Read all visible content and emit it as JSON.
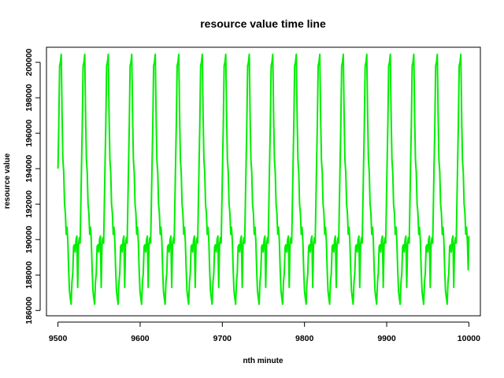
{
  "chart_data": {
    "type": "line",
    "title": "resource value time line",
    "xlabel": "nth minute",
    "ylabel": "resource value",
    "xlim": [
      9486,
      10014
    ],
    "ylim": [
      185700,
      200850
    ],
    "x_ticks": [
      9500,
      9600,
      9700,
      9800,
      9900,
      10000
    ],
    "y_ticks": [
      186000,
      188000,
      190000,
      192000,
      194000,
      196000,
      198000,
      200000
    ],
    "x_tick_labels": [
      "9500",
      "9600",
      "9700",
      "9800",
      "9900",
      "10000"
    ],
    "y_tick_labels": [
      "186000",
      "188000",
      "190000",
      "192000",
      "194000",
      "196000",
      "198000",
      "200000"
    ],
    "grid": false,
    "legend": "none",
    "line_color": "#00EE00",
    "period": 28.6,
    "cycle_template": [
      [
        0,
        194000
      ],
      [
        1,
        196500
      ],
      [
        2,
        199800
      ],
      [
        3,
        200000
      ],
      [
        4,
        200450
      ],
      [
        5,
        197000
      ],
      [
        6,
        194500
      ],
      [
        7,
        193800
      ],
      [
        8,
        192000
      ],
      [
        9,
        191500
      ],
      [
        10,
        190300
      ],
      [
        11,
        190700
      ],
      [
        12,
        189900
      ],
      [
        13,
        188300
      ],
      [
        14,
        187100
      ],
      [
        15,
        186700
      ],
      [
        16,
        186350
      ],
      [
        17,
        187600
      ],
      [
        18,
        188100
      ],
      [
        19,
        189600
      ],
      [
        20,
        189700
      ],
      [
        21,
        189300
      ],
      [
        22,
        190000
      ],
      [
        23,
        190200
      ],
      [
        24,
        187300
      ],
      [
        25,
        189700
      ],
      [
        26,
        190100
      ],
      [
        27,
        189800
      ],
      [
        28,
        192000
      ]
    ],
    "x_start": 9500,
    "x_end": 10000,
    "end_value": 190200
  }
}
